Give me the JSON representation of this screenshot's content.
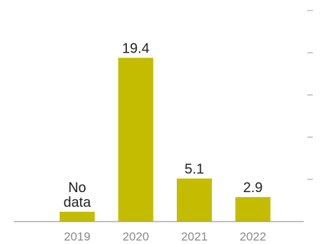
{
  "chart_data": {
    "type": "bar",
    "categories": [
      "2019",
      "2020",
      "2021",
      "2022"
    ],
    "values": [
      null,
      19.4,
      5.1,
      2.9
    ],
    "data_labels": [
      "No data",
      "19.4",
      "5.1",
      "2.9"
    ],
    "title": "",
    "xlabel": "",
    "ylabel": "",
    "ylim": [
      0,
      25
    ],
    "grid": false,
    "y_axis": "right, tick marks only, no tick labels",
    "colors": {
      "bar": "#c4bc00",
      "axis": "#9a9a9a",
      "label": "#222222",
      "tick_label": "#8a8a8a"
    }
  }
}
